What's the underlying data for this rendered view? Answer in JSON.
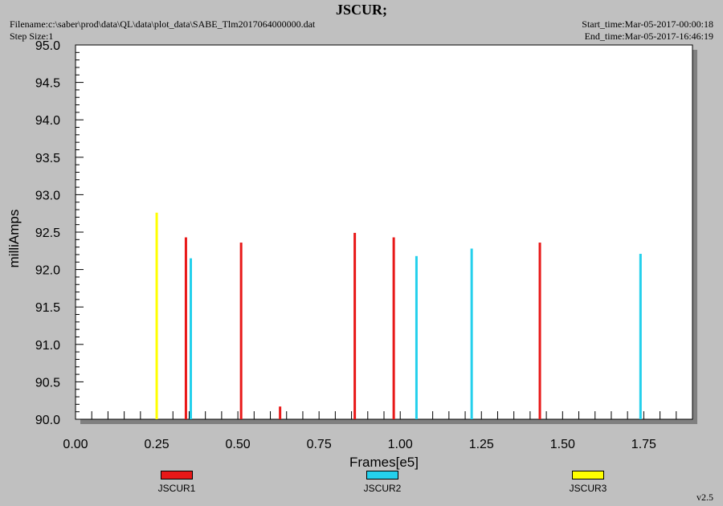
{
  "header": {
    "title": "JSCUR;",
    "filename": "Filename:c:\\saber\\prod\\data\\QL\\data\\plot_data\\SABE_Tlm2017064000000.dat",
    "step_size": "Step Size:1",
    "start_time": "Start_time:Mar-05-2017-00:00:18",
    "end_time": "End_time:Mar-05-2017-16:46:19",
    "version": "v2.5"
  },
  "colors": {
    "JSCUR1": "#e81818",
    "JSCUR2": "#24d0ec",
    "JSCUR3": "#ffff00"
  },
  "chart_data": {
    "type": "bar",
    "title": "JSCUR;",
    "xlabel": "Frames[e5]",
    "ylabel": "milliAmps",
    "xlim": [
      0.0,
      1.9
    ],
    "ylim": [
      90.0,
      95.0
    ],
    "x_ticks": [
      "0.00",
      "0.25",
      "0.50",
      "0.75",
      "1.00",
      "1.25",
      "1.50",
      "1.75"
    ],
    "y_ticks": [
      "90.0",
      "90.5",
      "91.0",
      "91.5",
      "92.0",
      "92.5",
      "93.0",
      "93.5",
      "94.0",
      "94.5",
      "95.0"
    ],
    "grid": false,
    "legend_position": "bottom",
    "series": [
      {
        "name": "JSCUR1",
        "points": [
          {
            "x": 0.34,
            "y": 92.43
          },
          {
            "x": 0.51,
            "y": 92.36
          },
          {
            "x": 0.63,
            "y": 90.17
          },
          {
            "x": 0.86,
            "y": 92.49
          },
          {
            "x": 0.98,
            "y": 92.43
          },
          {
            "x": 1.43,
            "y": 92.36
          }
        ]
      },
      {
        "name": "JSCUR2",
        "points": [
          {
            "x": 0.355,
            "y": 92.15
          },
          {
            "x": 1.05,
            "y": 92.18
          },
          {
            "x": 1.22,
            "y": 92.28
          },
          {
            "x": 1.74,
            "y": 92.21
          }
        ]
      },
      {
        "name": "JSCUR3",
        "points": [
          {
            "x": 0.25,
            "y": 92.76
          }
        ]
      }
    ]
  },
  "legend": {
    "items": [
      "JSCUR1",
      "JSCUR2",
      "JSCUR3"
    ]
  }
}
